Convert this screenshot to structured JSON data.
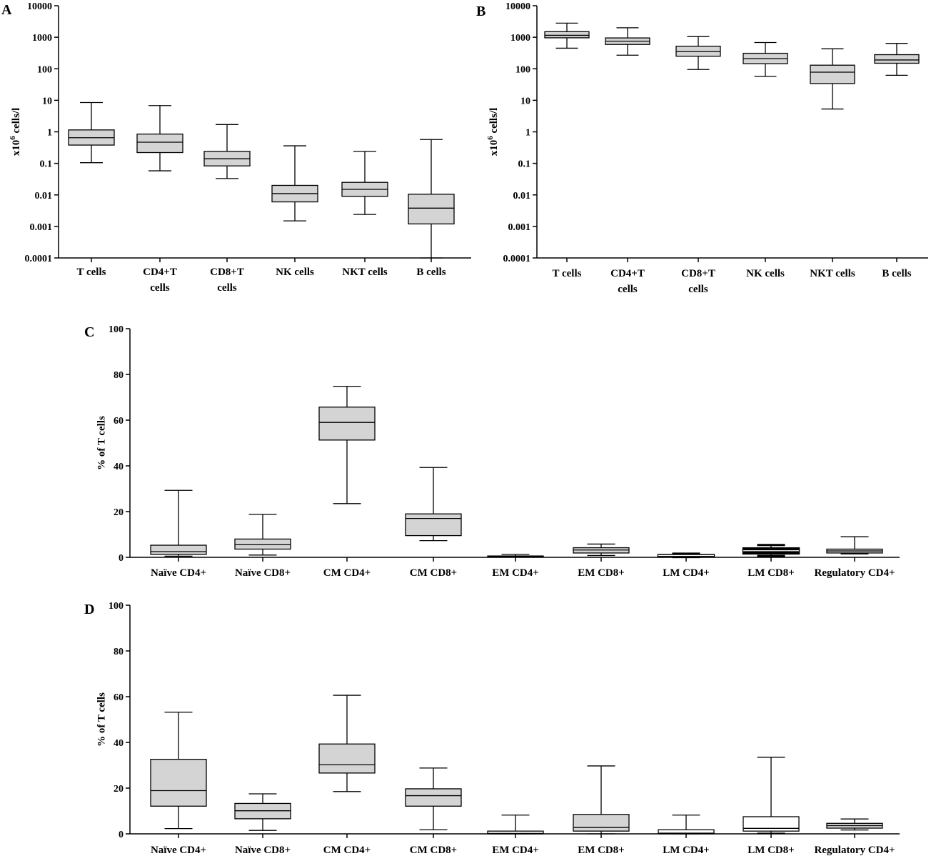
{
  "chart_data": [
    {
      "id": "A",
      "panel_label": "A",
      "type": "boxplot",
      "yscale": "log",
      "ylim": [
        0.0001,
        10000
      ],
      "ylabel_main": "x10",
      "ylabel_sup": "6",
      "ylabel_rest": " cells/l",
      "yticks": [
        0.0001,
        0.001,
        0.01,
        0.1,
        1,
        10,
        100,
        1000,
        10000
      ],
      "ytick_labels": [
        "0.0001",
        "0.001",
        "0.01",
        "0.1",
        "1",
        "10",
        "100",
        "1000",
        "10000"
      ],
      "categories": [
        [
          "T cells"
        ],
        [
          "CD4+T",
          "cells"
        ],
        [
          "CD8+T",
          "cells"
        ],
        [
          "NK cells"
        ],
        [
          "NKT cells"
        ],
        [
          "B cells"
        ]
      ],
      "boxes": [
        {
          "min": 0.105,
          "q1": 0.38,
          "median": 0.65,
          "q3": 1.15,
          "max": 8.5
        },
        {
          "min": 0.058,
          "q1": 0.22,
          "median": 0.47,
          "q3": 0.85,
          "max": 6.8
        },
        {
          "min": 0.033,
          "q1": 0.083,
          "median": 0.14,
          "q3": 0.24,
          "max": 1.7
        },
        {
          "min": 0.0015,
          "q1": 0.006,
          "median": 0.011,
          "q3": 0.02,
          "max": 0.36
        },
        {
          "min": 0.0024,
          "q1": 0.009,
          "median": 0.015,
          "q3": 0.025,
          "max": 0.24
        },
        {
          "min": 0.0001,
          "q1": 0.0012,
          "median": 0.0038,
          "q3": 0.0105,
          "max": 0.57
        }
      ]
    },
    {
      "id": "B",
      "panel_label": "B",
      "type": "boxplot",
      "yscale": "log",
      "ylim": [
        0.0001,
        10000
      ],
      "ylabel_main": "x10",
      "ylabel_sup": "6",
      "ylabel_rest": " cells/l",
      "yticks": [
        0.0001,
        0.001,
        0.01,
        0.1,
        1,
        10,
        100,
        1000,
        10000
      ],
      "ytick_labels": [
        "0.0001",
        "0.001",
        "0.01",
        "0.1",
        "1",
        "10",
        "100",
        "1000",
        "10000"
      ],
      "categories": [
        [
          "T cells"
        ],
        [
          "CD4+T",
          "cells"
        ],
        [
          "CD8+T",
          "cells"
        ],
        [
          "NK cells"
        ],
        [
          "NKT cells"
        ],
        [
          "B cells"
        ]
      ],
      "boxes": [
        {
          "min": 450,
          "q1": 960,
          "median": 1150,
          "q3": 1500,
          "max": 2800
        },
        {
          "min": 270,
          "q1": 590,
          "median": 750,
          "q3": 950,
          "max": 2000
        },
        {
          "min": 95,
          "q1": 250,
          "median": 350,
          "q3": 520,
          "max": 1050
        },
        {
          "min": 57,
          "q1": 145,
          "median": 210,
          "q3": 310,
          "max": 680
        },
        {
          "min": 5.3,
          "q1": 34,
          "median": 78,
          "q3": 130,
          "max": 430
        },
        {
          "min": 62,
          "q1": 150,
          "median": 190,
          "q3": 280,
          "max": 640
        }
      ]
    },
    {
      "id": "C",
      "panel_label": "C",
      "type": "boxplot",
      "yscale": "linear",
      "ylim": [
        0,
        100
      ],
      "ylabel_main": "% of T cells",
      "yticks": [
        0,
        20,
        40,
        60,
        80,
        100
      ],
      "ytick_labels": [
        "0",
        "20",
        "40",
        "60",
        "80",
        "100"
      ],
      "categories": [
        [
          "Naïve CD4+"
        ],
        [
          "Naïve CD8+"
        ],
        [
          "CM CD4+"
        ],
        [
          "CM CD8+"
        ],
        [
          "EM CD4+"
        ],
        [
          "EM CD8+"
        ],
        [
          "LM CD4+"
        ],
        [
          "LM CD8+"
        ],
        [
          "Regulatory CD4+"
        ]
      ],
      "boxes": [
        {
          "min": 0.5,
          "q1": 1.3,
          "median": 2.5,
          "q3": 5.3,
          "max": 29.3
        },
        {
          "min": 1.0,
          "q1": 3.6,
          "median": 5.5,
          "q3": 8.0,
          "max": 18.8
        },
        {
          "min": 23.5,
          "q1": 51.3,
          "median": 59.0,
          "q3": 65.7,
          "max": 74.8
        },
        {
          "min": 7.3,
          "q1": 9.5,
          "median": 17.0,
          "q3": 19.0,
          "max": 39.3
        },
        {
          "min": 0.1,
          "q1": 0.2,
          "median": 0.4,
          "q3": 0.6,
          "max": 1.3
        },
        {
          "min": 0.8,
          "q1": 1.9,
          "median": 3.2,
          "q3": 4.2,
          "max": 5.8
        },
        {
          "min": 0.1,
          "q1": 0.4,
          "median": 0.8,
          "q3": 1.1,
          "max": 1.6
        },
        {
          "min": 0.6,
          "q1": 1.6,
          "median": 2.9,
          "q3": 4.0,
          "max": 5.4
        },
        {
          "min": 1.5,
          "q1": 1.9,
          "median": 2.8,
          "q3": 3.6,
          "max": 9.0
        }
      ]
    },
    {
      "id": "D",
      "panel_label": "D",
      "type": "boxplot",
      "yscale": "linear",
      "ylim": [
        0,
        100
      ],
      "ylabel_main": "% of T cells",
      "yticks": [
        0,
        20,
        40,
        60,
        80,
        100
      ],
      "ytick_labels": [
        "0",
        "20",
        "40",
        "60",
        "80",
        "100"
      ],
      "categories": [
        [
          "Naïve CD4+"
        ],
        [
          "Naïve CD8+"
        ],
        [
          "CM CD4+"
        ],
        [
          "CM CD8+"
        ],
        [
          "EM CD4+"
        ],
        [
          "EM CD8+"
        ],
        [
          "LM CD4+"
        ],
        [
          "LM CD8+"
        ],
        [
          "Regulatory CD4+"
        ]
      ],
      "boxes": [
        {
          "min": 2.3,
          "q1": 12.1,
          "median": 18.9,
          "q3": 32.6,
          "max": 53.2
        },
        {
          "min": 1.5,
          "q1": 6.6,
          "median": 10.1,
          "q3": 13.3,
          "max": 17.5
        },
        {
          "min": 18.5,
          "q1": 26.6,
          "median": 30.2,
          "q3": 39.3,
          "max": 60.6
        },
        {
          "min": 1.8,
          "q1": 12.1,
          "median": 16.7,
          "q3": 19.7,
          "max": 28.8
        },
        {
          "min": 0.0,
          "q1": 0.0,
          "median": 0.2,
          "q3": 1.2,
          "max": 8.2
        },
        {
          "min": 0.0,
          "q1": 1.2,
          "median": 2.8,
          "q3": 8.5,
          "max": 29.7
        },
        {
          "min": 0.0,
          "q1": 0.0,
          "median": 0.3,
          "q3": 1.8,
          "max": 8.2
        },
        {
          "min": 0.3,
          "q1": 1.2,
          "median": 2.4,
          "q3": 7.5,
          "max": 33.5
        },
        {
          "min": 1.7,
          "q1": 2.5,
          "median": 3.6,
          "q3": 4.6,
          "max": 6.5
        }
      ]
    }
  ],
  "colors": {
    "box_fill": "#d4d4d4",
    "stroke": "#000000",
    "box_fill_hollow": "#ffffff",
    "box_fill_dark": "#000000"
  }
}
